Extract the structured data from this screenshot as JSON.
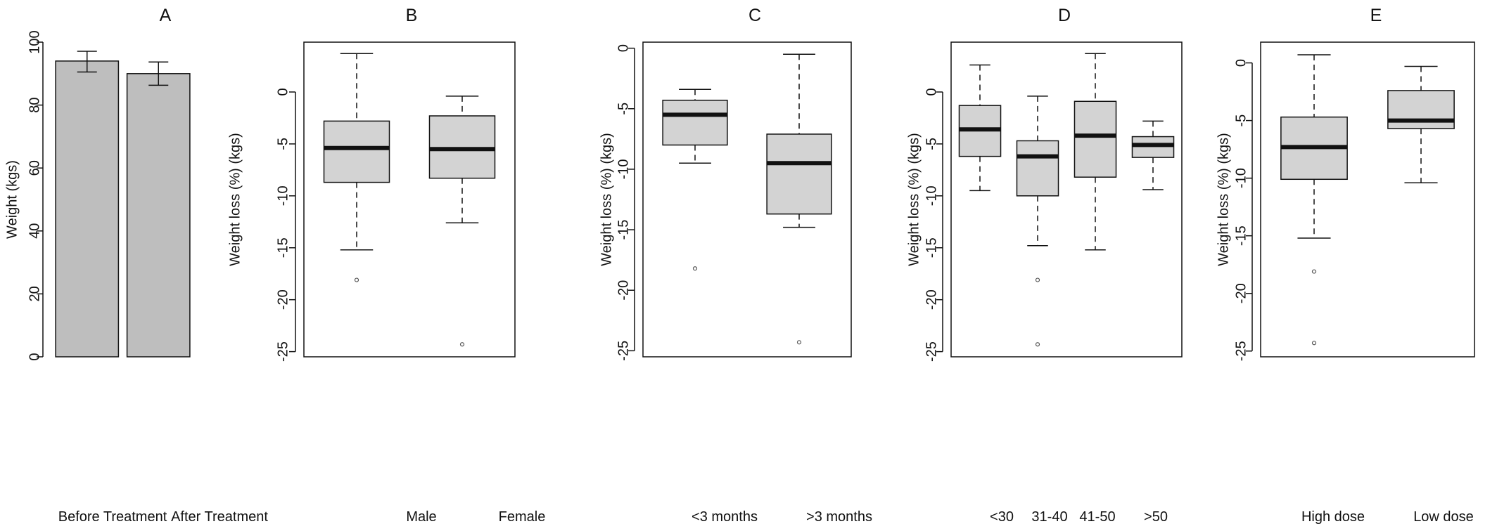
{
  "colors": {
    "box_fill": "#d3d3d3",
    "bar_fill": "#bebebe",
    "line": "#111111"
  },
  "chart_data": [
    {
      "type": "bar",
      "title": "A",
      "ylabel": "Weight (kgs)",
      "xlabel": "",
      "categories": [
        "Before Treatment",
        "After Treatment"
      ],
      "values": [
        94,
        90
      ],
      "error_low": [
        90.5,
        86.3
      ],
      "error_high": [
        97.1,
        93.7
      ],
      "ylim": [
        0,
        100
      ],
      "yticks": [
        0,
        20,
        40,
        60,
        80,
        100
      ],
      "ytick_labels": [
        "0",
        "20",
        "40",
        "60",
        "80",
        "100"
      ],
      "grid": false
    },
    {
      "type": "box",
      "title": "B",
      "ylabel": "Weight loss (%) (kgs)",
      "xlabel": "",
      "categories": [
        "Male",
        "Female"
      ],
      "boxes": [
        {
          "whisker_low": -15.2,
          "q1": -8.7,
          "median": -5.4,
          "q3": -2.8,
          "whisker_high": 3.7,
          "outliers": [
            -18.1
          ]
        },
        {
          "whisker_low": -12.6,
          "q1": -8.3,
          "median": -5.5,
          "q3": -2.3,
          "whisker_high": -0.4,
          "outliers": [
            -24.3
          ]
        }
      ],
      "ylim": [
        -25.5,
        4.8
      ],
      "yticks": [
        0,
        -5,
        -10,
        -15,
        -20,
        -25
      ],
      "ytick_labels": [
        "0",
        "-5",
        "-10",
        "-15",
        "-20",
        "-25"
      ],
      "grid": false
    },
    {
      "type": "box",
      "title": "C",
      "ylabel": "Weight loss (%) (kgs)",
      "xlabel": "",
      "categories": [
        "<3 months",
        ">3 months"
      ],
      "boxes": [
        {
          "whisker_low": -9.5,
          "q1": -8.0,
          "median": -5.5,
          "q3": -4.3,
          "whisker_high": -3.4,
          "outliers": [
            -18.2
          ]
        },
        {
          "whisker_low": -14.8,
          "q1": -13.7,
          "median": -9.5,
          "q3": -7.1,
          "whisker_high": -0.5,
          "outliers": [
            -24.3
          ]
        }
      ],
      "ylim": [
        -25.5,
        0.5
      ],
      "yticks": [
        0,
        -5,
        -10,
        -15,
        -20,
        -25
      ],
      "ytick_labels": [
        "0",
        "-5",
        "-10",
        "-15",
        "-20",
        "-25"
      ],
      "grid": false
    },
    {
      "type": "box",
      "title": "D",
      "ylabel": "Weight loss (%) (kgs)",
      "xlabel": "",
      "categories": [
        "<30",
        "31-40",
        "41-50",
        ">50"
      ],
      "boxes": [
        {
          "whisker_low": -9.5,
          "q1": -6.2,
          "median": -3.6,
          "q3": -1.3,
          "whisker_high": 2.6,
          "outliers": []
        },
        {
          "whisker_low": -14.8,
          "q1": -10.0,
          "median": -6.2,
          "q3": -4.7,
          "whisker_high": -0.4,
          "outliers": [
            -18.1,
            -24.3
          ]
        },
        {
          "whisker_low": -15.2,
          "q1": -8.2,
          "median": -4.2,
          "q3": -0.9,
          "whisker_high": 3.7,
          "outliers": []
        },
        {
          "whisker_low": -9.4,
          "q1": -6.3,
          "median": -5.1,
          "q3": -4.3,
          "whisker_high": -2.8,
          "outliers": []
        }
      ],
      "ylim": [
        -25.5,
        4.8
      ],
      "yticks": [
        0,
        -5,
        -10,
        -15,
        -20,
        -25
      ],
      "ytick_labels": [
        "0",
        "-5",
        "-10",
        "-15",
        "-20",
        "-25"
      ],
      "grid": false
    },
    {
      "type": "box",
      "title": "E",
      "ylabel": "Weight loss (%) (kgs)",
      "xlabel": "",
      "categories": [
        "High dose",
        "Low dose"
      ],
      "boxes": [
        {
          "whisker_low": -15.2,
          "q1": -10.1,
          "median": -7.3,
          "q3": -4.7,
          "whisker_high": 0.7,
          "outliers": [
            -18.1,
            -24.3
          ]
        },
        {
          "whisker_low": -10.4,
          "q1": -5.7,
          "median": -5.0,
          "q3": -2.4,
          "whisker_high": -0.3,
          "outliers": []
        }
      ],
      "ylim": [
        -25.5,
        1.8
      ],
      "yticks": [
        0,
        -5,
        -10,
        -15,
        -20,
        -25
      ],
      "ytick_labels": [
        "0",
        "-5",
        "-10",
        "-15",
        "-20",
        "-25"
      ],
      "grid": false
    }
  ]
}
